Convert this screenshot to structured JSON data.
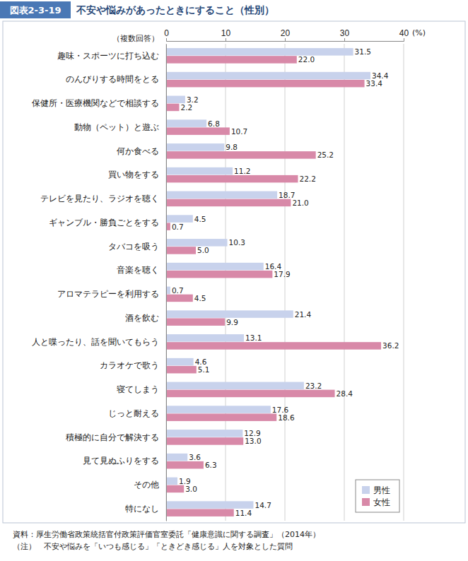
{
  "chart_data": {
    "type": "bar",
    "orientation": "horizontal",
    "title": "不安や悩みがあったときにすること（性別）",
    "x_label": "(%)",
    "annotations": [
      "図表2-3-19",
      "（複数回答）",
      "資料：厚生労働省政策統括官付政策評価官室委託「健康意識に関する調査」（2014年）",
      "（注）　不安や悩みを「いつも感じる」「ときどき感じる」人を対象とした質問"
    ],
    "categories": [
      "趣味・スポーツに打ち込む",
      "のんびりする時間をとる",
      "保健所・医療機関などで相談する",
      "動物（ペット）と遊ぶ",
      "何か食べる",
      "買い物をする",
      "テレビを見たり、ラジオを聴く",
      "ギャンブル・勝負ごとをする",
      "タバコを吸う",
      "音楽を聴く",
      "アロマテラピーを利用する",
      "酒を飲む",
      "人と喋ったり、話を聞いてもらう",
      "カラオケで歌う",
      "寝てしまう",
      "じっと耐える",
      "積極的に自分で解決する",
      "見て見ぬふりをする",
      "その他",
      "特になし"
    ],
    "series": [
      {
        "name": "男性",
        "color": "#c8d2ec",
        "values": [
          31.5,
          34.4,
          3.2,
          6.8,
          9.8,
          11.2,
          18.7,
          4.5,
          10.3,
          16.4,
          0.7,
          21.4,
          13.1,
          4.6,
          23.2,
          17.6,
          12.9,
          3.6,
          1.9,
          14.7
        ],
        "value_labels": [
          "31.5",
          "34.4",
          "3.2",
          "6.8",
          "9.8",
          "11.2",
          "18.7",
          "4.5",
          "10.3",
          "16.4",
          "0.7",
          "21.4",
          "13.1",
          "4.6",
          "23.2",
          "17.6",
          "12.9",
          "3.6",
          "1.9",
          "14.7"
        ]
      },
      {
        "name": "女性",
        "color": "#d889a8",
        "values": [
          22.0,
          33.4,
          2.2,
          10.7,
          25.2,
          22.2,
          21.0,
          0.7,
          5.0,
          17.9,
          4.5,
          9.9,
          36.2,
          5.1,
          28.4,
          18.6,
          13.0,
          6.3,
          3.0,
          11.4
        ],
        "value_labels": [
          "22.0",
          "33.4",
          "2.2",
          "10.7",
          "25.2",
          "22.2",
          "21.0",
          "0.7",
          "5.0",
          "17.9",
          "4.5",
          "9.9",
          "36.2",
          "5.1",
          "28.4",
          "18.6",
          "13.0",
          "6.3",
          "3.0",
          "11.4"
        ]
      }
    ],
    "xlim": [
      0,
      40
    ],
    "xticks": [
      0,
      10,
      20,
      30,
      40
    ],
    "grid": true,
    "legend": "lower right",
    "data_labels": true
  }
}
